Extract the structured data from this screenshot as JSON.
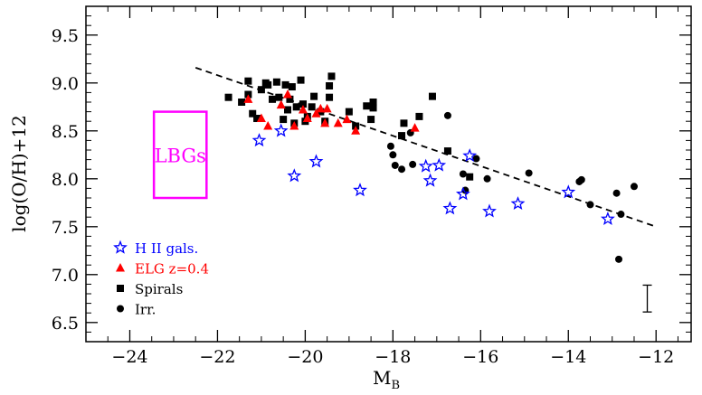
{
  "chart_data": {
    "type": "scatter",
    "title": "",
    "xlabel": "M",
    "xlabel_sub": "B",
    "ylabel": "log(O/H)+12",
    "xlim": [
      -25,
      -11.2
    ],
    "ylim": [
      6.3,
      9.8
    ],
    "xticks": [
      -24,
      -22,
      -20,
      -18,
      -16,
      -14,
      -12
    ],
    "xtick_labels": [
      "−24",
      "−22",
      "−20",
      "−18",
      "−16",
      "−14",
      "−12"
    ],
    "yticks": [
      6.5,
      7.0,
      7.5,
      8.0,
      8.5,
      9.0,
      9.5
    ],
    "ytick_labels": [
      "6.5",
      "7.0",
      "7.5",
      "8.0",
      "8.5",
      "9.0",
      "9.5"
    ],
    "grid": false,
    "legend_position": "bottom-left",
    "colors": {
      "hii": "#0000ff",
      "elg": "#ff0000",
      "spirals": "#000000",
      "irr": "#000000",
      "lbg": "#ff00ff",
      "fit": "#000000"
    },
    "series": [
      {
        "name": "H II gals.",
        "marker": "open-star",
        "x": [
          -21.05,
          -20.55,
          -19.75,
          -20.25,
          -18.75,
          -17.25,
          -17.15,
          -16.95,
          -16.7,
          -16.4,
          -16.25,
          -15.8,
          -15.15,
          -14,
          -13.1
        ],
        "y": [
          8.4,
          8.5,
          8.18,
          8.03,
          7.88,
          8.13,
          7.98,
          8.14,
          7.69,
          7.84,
          8.24,
          7.66,
          7.74,
          7.86,
          7.58
        ]
      },
      {
        "name": "ELG z=0.4",
        "marker": "filled-triangle",
        "x": [
          -21.3,
          -21.0,
          -20.85,
          -20.55,
          -20.4,
          -20.25,
          -20.05,
          -19.95,
          -19.75,
          -19.65,
          -19.55,
          -19.5,
          -19.25,
          -19.05,
          -18.85,
          -17.5
        ],
        "y": [
          8.83,
          8.63,
          8.55,
          8.77,
          8.88,
          8.55,
          8.72,
          8.63,
          8.68,
          8.73,
          8.58,
          8.73,
          8.58,
          8.62,
          8.5,
          8.53
        ]
      },
      {
        "name": "Spirals",
        "marker": "filled-square",
        "x": [
          -21.75,
          -21.45,
          -21.3,
          -21.3,
          -21.2,
          -21.1,
          -21.0,
          -20.9,
          -20.85,
          -20.75,
          -20.65,
          -20.6,
          -20.5,
          -20.45,
          -20.4,
          -20.35,
          -20.3,
          -20.25,
          -20.2,
          -20.1,
          -20.05,
          -20.0,
          -19.95,
          -19.85,
          -19.8,
          -19.65,
          -19.55,
          -19.45,
          -19.45,
          -19.4,
          -19.0,
          -18.85,
          -18.6,
          -18.5,
          -18.45,
          -18.45,
          -17.8,
          -17.75,
          -17.4,
          -17.1,
          -16.75,
          -16.25
        ],
        "y": [
          8.85,
          8.8,
          8.88,
          9.02,
          8.68,
          8.63,
          8.93,
          9.0,
          8.98,
          8.83,
          9.01,
          8.85,
          8.62,
          8.98,
          8.72,
          8.83,
          8.96,
          8.58,
          8.75,
          9.03,
          8.78,
          8.6,
          8.65,
          8.75,
          8.86,
          8.7,
          8.6,
          8.85,
          8.97,
          9.07,
          8.7,
          8.55,
          8.76,
          8.62,
          8.8,
          8.74,
          8.45,
          8.58,
          8.65,
          8.86,
          8.29,
          8.02
        ]
      },
      {
        "name": "Irr.",
        "marker": "filled-circle",
        "x": [
          -18.05,
          -17.95,
          -17.8,
          -17.6,
          -17.55,
          -18.0,
          -16.75,
          -16.4,
          -16.35,
          -16.1,
          -15.85,
          -14.9,
          -13.75,
          -13.7,
          -13.5,
          -12.9,
          -12.8,
          -12.85,
          -12.5
        ],
        "y": [
          8.34,
          8.14,
          8.1,
          8.48,
          8.15,
          8.25,
          8.66,
          8.05,
          7.88,
          8.21,
          8.0,
          8.06,
          7.97,
          7.99,
          7.73,
          7.85,
          7.63,
          7.16,
          7.92
        ]
      }
    ],
    "fit_line": {
      "style": "dashed",
      "x": [
        -22.5,
        -12.0
      ],
      "y": [
        9.16,
        7.5
      ]
    },
    "error_bar": {
      "x": -12.2,
      "y": 6.75,
      "yerr": 0.14
    },
    "annotation_box": {
      "label": "LBGs",
      "x_range": [
        -23.45,
        -22.25
      ],
      "y_range": [
        7.8,
        8.7
      ]
    }
  }
}
